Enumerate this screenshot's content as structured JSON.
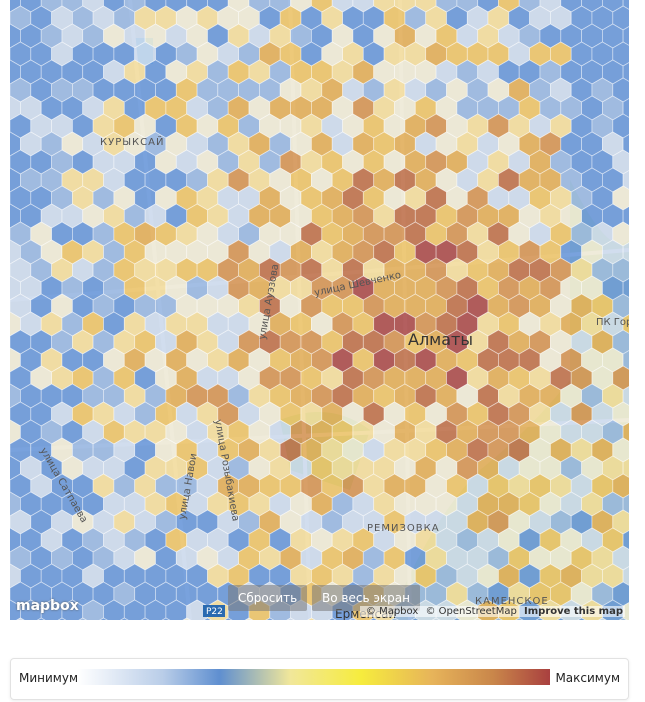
{
  "map": {
    "city": "Алматы",
    "streets": [
      "улица Шевченко",
      "улица Ауэзова",
      "улица Розыбакиева",
      "улица Сатпаева",
      "улица Навои"
    ],
    "districts": [
      "РЕМИЗОВКА",
      "КАМЕНСКОЕ",
      "КУРЫКСАЙ",
      "ПК Горная гига",
      "Ерменсай",
      "Р22"
    ]
  },
  "controls": {
    "reset": "Сбросить",
    "fullscreen": "Во весь экран"
  },
  "attribution": {
    "logo": "mapbox",
    "mapbox": "© Mapbox",
    "osm": "© OpenStreetMap",
    "improve": "Improve this map"
  },
  "legend": {
    "min": "Минимум",
    "max": "Максимум"
  }
}
